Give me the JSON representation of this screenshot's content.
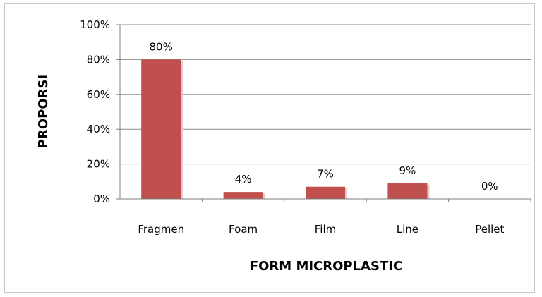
{
  "chart_data": {
    "type": "bar",
    "categories": [
      "Fragmen",
      "Foam",
      "Film",
      "Line",
      "Pellet"
    ],
    "values": [
      80,
      4,
      7,
      9,
      0
    ],
    "data_labels": [
      "80%",
      "4%",
      "7%",
      "9%",
      "0%"
    ],
    "xlabel": "FORM  MICROPLASTIC",
    "ylabel": "PROPORSI",
    "ylim": [
      0,
      100
    ],
    "yticks": [
      "0%",
      "20%",
      "40%",
      "60%",
      "80%",
      "100%"
    ],
    "ytick_values": [
      0,
      20,
      40,
      60,
      80,
      100
    ],
    "grid": true,
    "bar_color": "#c0504d"
  }
}
